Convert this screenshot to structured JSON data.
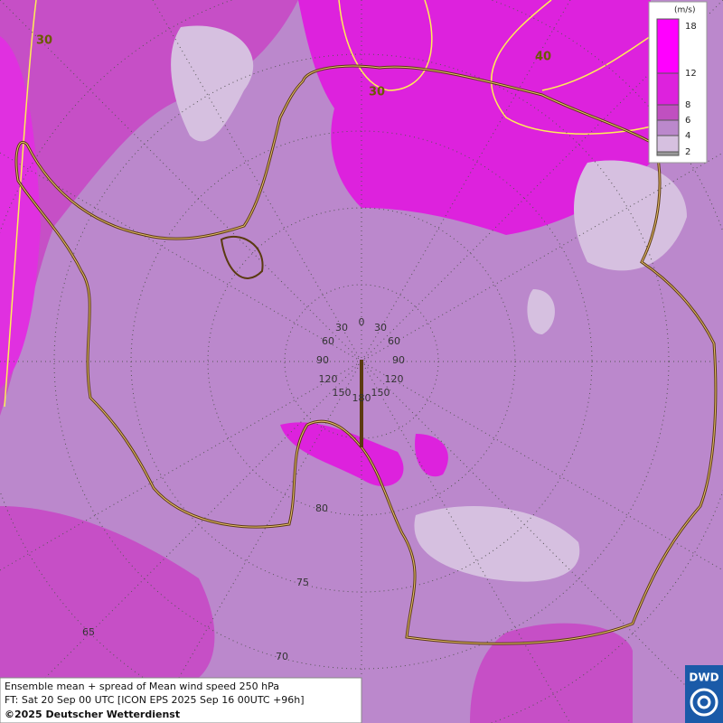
{
  "legend": {
    "unit": "(m/s)",
    "levels": [
      "18",
      "12",
      "8",
      "6",
      "4",
      "2"
    ]
  },
  "contour_labels": [
    "30",
    "30",
    "40"
  ],
  "meridian_labels": [
    "0",
    "30",
    "30",
    "60",
    "60",
    "90",
    "90",
    "120",
    "120",
    "150",
    "150",
    "180"
  ],
  "latitude_labels": [
    "80",
    "75",
    "70",
    "65"
  ],
  "footer": {
    "line1": "Ensemble mean + spread of Mean wind speed 250 hPa",
    "line2": "FT: Sat 20 Sep 00 UTC [ICON EPS 2025 Sep 16 00UTC +96h]",
    "line3": "©2025 Deutscher Wetterdienst"
  },
  "logo": "DWD"
}
